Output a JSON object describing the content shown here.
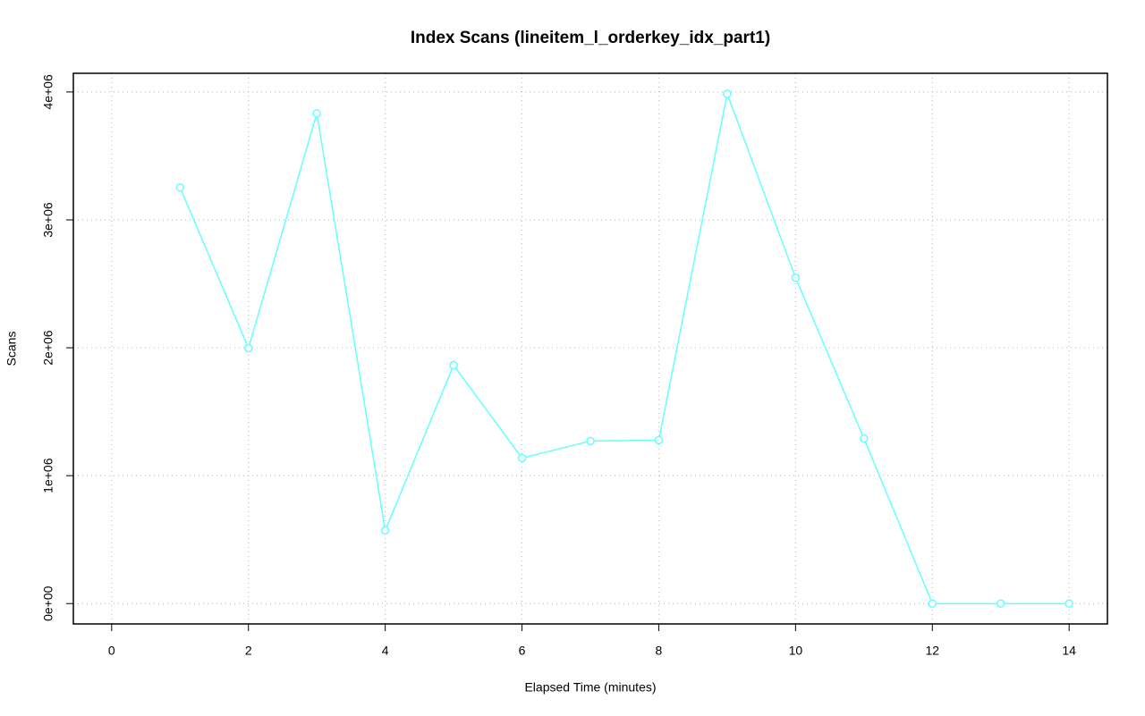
{
  "chart_data": {
    "type": "line",
    "title": "Index Scans (lineitem_l_orderkey_idx_part1)",
    "x_label": "Elapsed Time (minutes)",
    "y_label": "Scans",
    "x": [
      1,
      2,
      3,
      4,
      5,
      6,
      7,
      8,
      9,
      10,
      11,
      12,
      13,
      14
    ],
    "series": [
      {
        "name": "Scans",
        "color": "#66ffff",
        "values": [
          3253000,
          1997000,
          3832000,
          572000,
          1864000,
          1138000,
          1271000,
          1278000,
          3986000,
          2548000,
          1291000,
          0,
          0,
          0
        ]
      }
    ],
    "xlim": [
      -0.56,
      14.56
    ],
    "xticks": [
      0,
      2,
      4,
      6,
      8,
      10,
      12,
      14
    ],
    "ylim": [
      -159000,
      4146000
    ],
    "yticks": [
      {
        "value": 0,
        "label": "0e+00"
      },
      {
        "value": 1000000,
        "label": "1e+06"
      },
      {
        "value": 2000000,
        "label": "2e+06"
      },
      {
        "value": 3000000,
        "label": "3e+06"
      },
      {
        "value": 4000000,
        "label": "4e+06"
      }
    ],
    "grid": true,
    "markers": "open-circle"
  }
}
